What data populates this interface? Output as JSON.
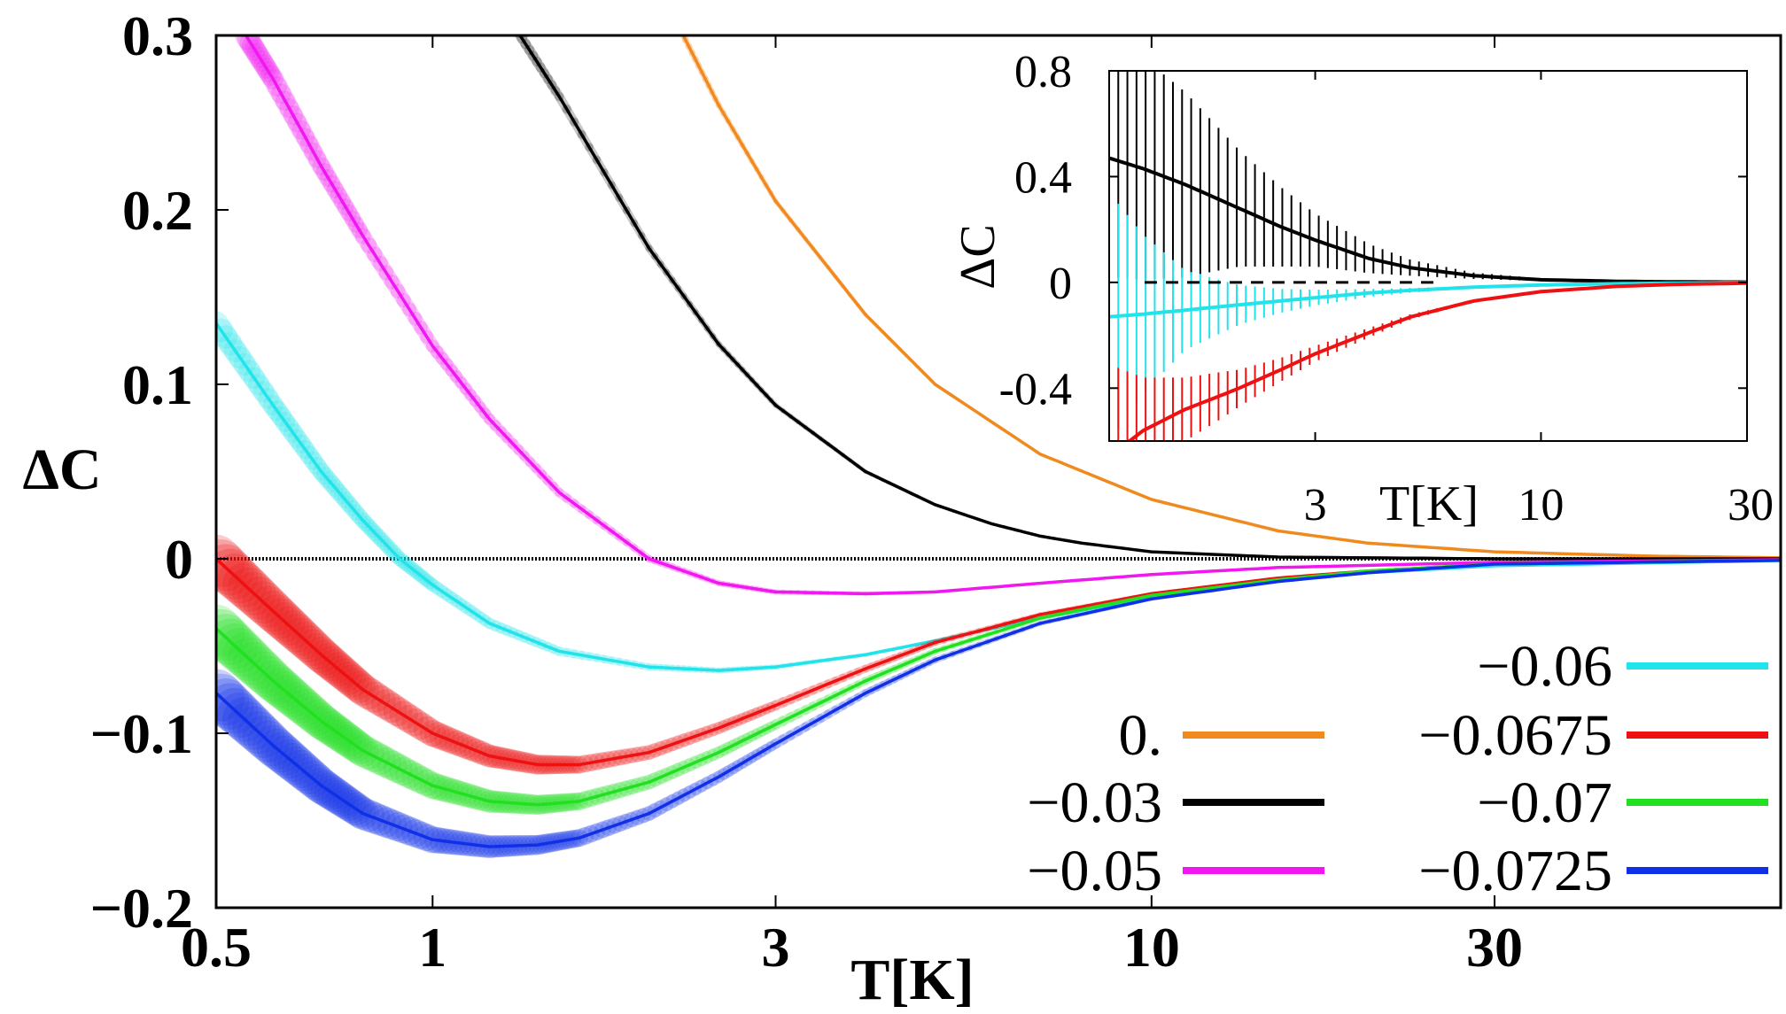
{
  "chart_data": [
    {
      "type": "line",
      "x_scale": "log",
      "xlim": [
        0.5,
        75
      ],
      "ylim": [
        -0.2,
        0.3
      ],
      "xlabel": "T[K]",
      "ylabel": "ΔC",
      "x_ticks": [
        0.5,
        1,
        3,
        10,
        30
      ],
      "x_tick_labels": [
        "0.5",
        "1",
        "3",
        "10",
        "30"
      ],
      "y_ticks": [
        -0.2,
        -0.1,
        0,
        0.1,
        0.2,
        0.3
      ],
      "y_tick_labels": [
        "−0.2",
        "−0.1",
        "0",
        "0.1",
        "0.2",
        "0.3"
      ],
      "grid": false,
      "legend_position": "bottom-right",
      "zero_line": true,
      "series": [
        {
          "name": "0.",
          "color": "#f08a1e",
          "x": [
            2.2,
            2.5,
            3,
            4,
            5,
            7,
            10,
            15,
            20,
            30,
            50,
            75
          ],
          "y": [
            0.305,
            0.26,
            0.205,
            0.14,
            0.1,
            0.06,
            0.034,
            0.016,
            0.009,
            0.004,
            0.0015,
            0.0006
          ]
        },
        {
          "name": "−0.03",
          "color": "#000000",
          "x": [
            1.3,
            1.5,
            2,
            2.5,
            3,
            4,
            5,
            6,
            7,
            8,
            10,
            15,
            30,
            75
          ],
          "y": [
            0.305,
            0.265,
            0.178,
            0.123,
            0.088,
            0.05,
            0.031,
            0.02,
            0.013,
            0.009,
            0.004,
            0.001,
            0.0,
            0.0
          ]
        },
        {
          "name": "−0.05",
          "color": "#f017f0",
          "x": [
            0.55,
            0.6,
            0.7,
            0.8,
            1.0,
            1.2,
            1.5,
            2.0,
            2.5,
            3.0,
            4.0,
            5.0,
            7.0,
            10,
            15,
            30,
            75
          ],
          "y": [
            0.3,
            0.275,
            0.225,
            0.185,
            0.122,
            0.08,
            0.038,
            0.0,
            -0.014,
            -0.019,
            -0.02,
            -0.019,
            -0.014,
            -0.009,
            -0.005,
            -0.002,
            -0.0005
          ]
        },
        {
          "name": "−0.06",
          "color": "#22e2ea",
          "x": [
            0.5,
            0.6,
            0.7,
            0.8,
            0.9,
            1.0,
            1.2,
            1.5,
            2.0,
            2.5,
            3.0,
            4.0,
            5.0,
            7.0,
            10,
            15,
            20,
            30,
            75
          ],
          "y": [
            0.135,
            0.088,
            0.05,
            0.022,
            0.0,
            -0.015,
            -0.037,
            -0.053,
            -0.062,
            -0.064,
            -0.062,
            -0.055,
            -0.047,
            -0.034,
            -0.022,
            -0.013,
            -0.008,
            -0.004,
            -0.001
          ]
        },
        {
          "name": "−0.0675",
          "color": "#ee1111",
          "x": [
            0.5,
            0.6,
            0.7,
            0.8,
            1.0,
            1.2,
            1.4,
            1.6,
            2.0,
            2.5,
            3.0,
            4.0,
            5.0,
            7.0,
            10,
            15,
            20,
            30,
            75
          ],
          "y": [
            0.0,
            -0.03,
            -0.055,
            -0.075,
            -0.1,
            -0.113,
            -0.118,
            -0.118,
            -0.111,
            -0.097,
            -0.084,
            -0.063,
            -0.048,
            -0.032,
            -0.02,
            -0.011,
            -0.007,
            -0.003,
            -0.0008
          ]
        },
        {
          "name": "−0.07",
          "color": "#20e020",
          "x": [
            0.5,
            0.6,
            0.7,
            0.8,
            1.0,
            1.2,
            1.4,
            1.6,
            2.0,
            2.5,
            3.0,
            4.0,
            5.0,
            7.0,
            10,
            15,
            20,
            30,
            75
          ],
          "y": [
            -0.04,
            -0.07,
            -0.093,
            -0.11,
            -0.13,
            -0.139,
            -0.141,
            -0.139,
            -0.128,
            -0.111,
            -0.095,
            -0.07,
            -0.053,
            -0.034,
            -0.021,
            -0.012,
            -0.007,
            -0.003,
            -0.0008
          ]
        },
        {
          "name": "−0.0725",
          "color": "#1030e8",
          "x": [
            0.5,
            0.6,
            0.7,
            0.8,
            1.0,
            1.2,
            1.4,
            1.6,
            2.0,
            2.5,
            3.0,
            4.0,
            5.0,
            7.0,
            10,
            15,
            20,
            30,
            75
          ],
          "y": [
            -0.077,
            -0.107,
            -0.13,
            -0.146,
            -0.161,
            -0.165,
            -0.164,
            -0.16,
            -0.146,
            -0.125,
            -0.106,
            -0.077,
            -0.058,
            -0.037,
            -0.023,
            -0.013,
            -0.008,
            -0.003,
            -0.0009
          ]
        }
      ]
    },
    {
      "type": "line",
      "x_scale": "log",
      "xlim": [
        1,
        30
      ],
      "ylim": [
        -0.6,
        0.8
      ],
      "xlabel": "T[K]",
      "ylabel": "ΔC",
      "x_ticks": [
        3,
        10,
        30
      ],
      "x_tick_labels": [
        "3",
        "10",
        "30"
      ],
      "y_ticks": [
        0.8,
        0.4,
        0,
        -0.4
      ],
      "y_tick_labels": [
        "0.8",
        "0.4",
        "0",
        "-0.4"
      ],
      "grid": false,
      "error_bars": true,
      "zero_line": "dashed",
      "series": [
        {
          "color": "#000000",
          "x": [
            1.0,
            1.2,
            1.5,
            2.0,
            2.5,
            3.0,
            4.0,
            5.0,
            7.0,
            10,
            15,
            20,
            30
          ],
          "y": [
            0.47,
            0.43,
            0.37,
            0.28,
            0.21,
            0.16,
            0.09,
            0.055,
            0.025,
            0.01,
            0.004,
            0.002,
            0.001
          ],
          "err": [
            0.45,
            0.42,
            0.35,
            0.22,
            0.15,
            0.1,
            0.055,
            0.03,
            0.012,
            0.005,
            0.002,
            0.001,
            0.0005
          ]
        },
        {
          "color": "#22e2ea",
          "x": [
            1.0,
            1.2,
            1.5,
            2.0,
            2.5,
            3.0,
            4.0,
            5.0,
            7.0,
            10,
            15,
            20,
            30
          ],
          "y": [
            -0.13,
            -0.12,
            -0.105,
            -0.085,
            -0.07,
            -0.058,
            -0.04,
            -0.03,
            -0.018,
            -0.01,
            -0.005,
            -0.003,
            -0.001
          ],
          "err": [
            0.47,
            0.3,
            0.15,
            0.075,
            0.045,
            0.03,
            0.015,
            0.009,
            0.004,
            0.002,
            0.001,
            0.0005,
            0.0003
          ]
        },
        {
          "color": "#ee1111",
          "x": [
            1.0,
            1.2,
            1.5,
            1.8,
            2.0,
            2.5,
            3.0,
            4.0,
            5.0,
            7.0,
            10,
            15,
            20,
            30
          ],
          "y": [
            -0.66,
            -0.56,
            -0.48,
            -0.43,
            -0.4,
            -0.33,
            -0.27,
            -0.19,
            -0.13,
            -0.07,
            -0.035,
            -0.015,
            -0.008,
            -0.003
          ],
          "err": [
            0.35,
            0.2,
            0.12,
            0.09,
            0.07,
            0.045,
            0.03,
            0.018,
            0.01,
            0.005,
            0.002,
            0.001,
            0.0006,
            0.0003
          ]
        }
      ]
    }
  ]
}
